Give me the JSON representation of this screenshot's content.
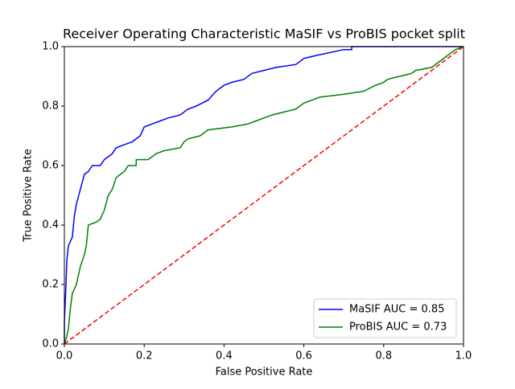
{
  "chart_data": {
    "type": "line",
    "title": "Receiver Operating Characteristic MaSIF vs ProBIS pocket split",
    "xlabel": "False Positive Rate",
    "ylabel": "True Positive Rate",
    "xlim": [
      0,
      1
    ],
    "ylim": [
      0,
      1
    ],
    "xticks": [
      {
        "value": 0,
        "label": "0.0"
      },
      {
        "value": 0.2,
        "label": "0.2"
      },
      {
        "value": 0.4,
        "label": "0.4"
      },
      {
        "value": 0.6,
        "label": "0.6"
      },
      {
        "value": 0.8,
        "label": "0.8"
      },
      {
        "value": 1,
        "label": "1.0"
      }
    ],
    "yticks": [
      {
        "value": 0,
        "label": "0.0"
      },
      {
        "value": 0.2,
        "label": "0.2"
      },
      {
        "value": 0.4,
        "label": "0.4"
      },
      {
        "value": 0.6,
        "label": "0.6"
      },
      {
        "value": 0.8,
        "label": "0.8"
      },
      {
        "value": 1,
        "label": "1.0"
      }
    ],
    "legend": "lower right",
    "series": [
      {
        "name": "MaSIF AUC = 0.85",
        "color": "#0000ff",
        "x": [
          0,
          0,
          0.004,
          0.006,
          0.01,
          0.02,
          0.025,
          0.03,
          0.04,
          0.05,
          0.06,
          0.07,
          0.09,
          0.1,
          0.11,
          0.12,
          0.13,
          0.15,
          0.17,
          0.19,
          0.2,
          0.22,
          0.24,
          0.26,
          0.29,
          0.31,
          0.33,
          0.36,
          0.38,
          0.4,
          0.42,
          0.45,
          0.47,
          0.5,
          0.53,
          0.58,
          0.6,
          0.63,
          0.7,
          0.72,
          0.72,
          1
        ],
        "values": [
          0,
          0.07,
          0.2,
          0.28,
          0.33,
          0.36,
          0.43,
          0.47,
          0.52,
          0.57,
          0.58,
          0.6,
          0.6,
          0.62,
          0.63,
          0.64,
          0.66,
          0.67,
          0.68,
          0.7,
          0.73,
          0.74,
          0.75,
          0.76,
          0.77,
          0.79,
          0.8,
          0.82,
          0.85,
          0.87,
          0.88,
          0.89,
          0.91,
          0.92,
          0.93,
          0.94,
          0.96,
          0.97,
          0.99,
          0.99,
          1,
          1
        ]
      },
      {
        "name": "ProBIS AUC = 0.73",
        "color": "#008000",
        "x": [
          0,
          0.005,
          0.01,
          0.015,
          0.02,
          0.03,
          0.04,
          0.05,
          0.055,
          0.06,
          0.08,
          0.09,
          0.1,
          0.11,
          0.12,
          0.13,
          0.14,
          0.15,
          0.16,
          0.18,
          0.18,
          0.21,
          0.23,
          0.25,
          0.29,
          0.3,
          0.31,
          0.34,
          0.36,
          0.42,
          0.46,
          0.48,
          0.5,
          0.52,
          0.55,
          0.58,
          0.59,
          0.6,
          0.62,
          0.64,
          0.7,
          0.75,
          0.78,
          0.8,
          0.81,
          0.84,
          0.87,
          0.88,
          0.92,
          0.94,
          0.96,
          0.98,
          1
        ],
        "values": [
          0,
          0.02,
          0.05,
          0.12,
          0.17,
          0.2,
          0.26,
          0.3,
          0.33,
          0.4,
          0.41,
          0.42,
          0.45,
          0.5,
          0.52,
          0.56,
          0.57,
          0.58,
          0.6,
          0.6,
          0.62,
          0.62,
          0.64,
          0.65,
          0.66,
          0.68,
          0.69,
          0.7,
          0.72,
          0.73,
          0.74,
          0.75,
          0.76,
          0.77,
          0.78,
          0.79,
          0.8,
          0.81,
          0.82,
          0.83,
          0.84,
          0.85,
          0.87,
          0.88,
          0.89,
          0.9,
          0.91,
          0.92,
          0.93,
          0.95,
          0.97,
          0.99,
          1
        ]
      },
      {
        "color": "#ff0000",
        "dashed": true,
        "x": [
          0,
          1
        ],
        "values": [
          0,
          1
        ]
      }
    ]
  }
}
